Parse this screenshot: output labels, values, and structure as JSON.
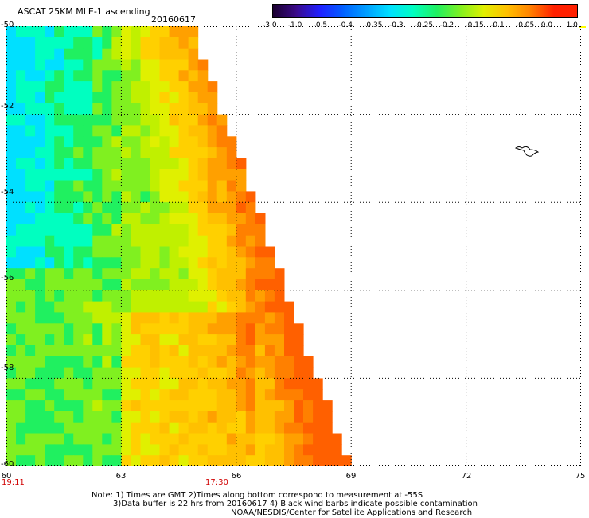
{
  "title": "ASCAT 25KM MLE-1 ascending",
  "date": "20160617",
  "colorbar": {
    "labels": [
      "-3.0",
      "-1.0",
      "-0.5",
      "-0.4",
      "-0.35",
      "-0.3",
      "-0.25",
      "-0.2",
      "-0.15",
      "-0.1",
      "-0.05",
      "0.0",
      "1.0"
    ],
    "colors": [
      "#1a0030",
      "#3b0a8a",
      "#2020ff",
      "#0060ff",
      "#00a0ff",
      "#00e0ff",
      "#00ffc0",
      "#20f060",
      "#80f020",
      "#e0f000",
      "#ffc000",
      "#ff8000",
      "#ff2000"
    ]
  },
  "y_axis": {
    "labels": [
      "-50",
      "-52",
      "-54",
      "-56",
      "-58",
      "-60"
    ]
  },
  "x_axis": {
    "labels": [
      "60",
      "63",
      "66",
      "69",
      "72",
      "75"
    ]
  },
  "times": [
    "19:11",
    "17:30"
  ],
  "notes": [
    "Note: 1) Times are GMT 2)Times along bottom correspond to measurement at -55S",
    "3)Data buffer is 22 hrs from 20160617 4) Black wind barbs indicate possible contamination",
    "NOAA/NESDIS/Center for Satellite Applications and Research"
  ],
  "map": {
    "type": "gridded-swath",
    "lon_range": [
      60,
      75
    ],
    "lat_range": [
      -60,
      -50
    ],
    "grid_lines": "dotted",
    "swath_edge_lon_at_top": 64.9,
    "swath_edge_lon_at_bottom": 69.0
  }
}
